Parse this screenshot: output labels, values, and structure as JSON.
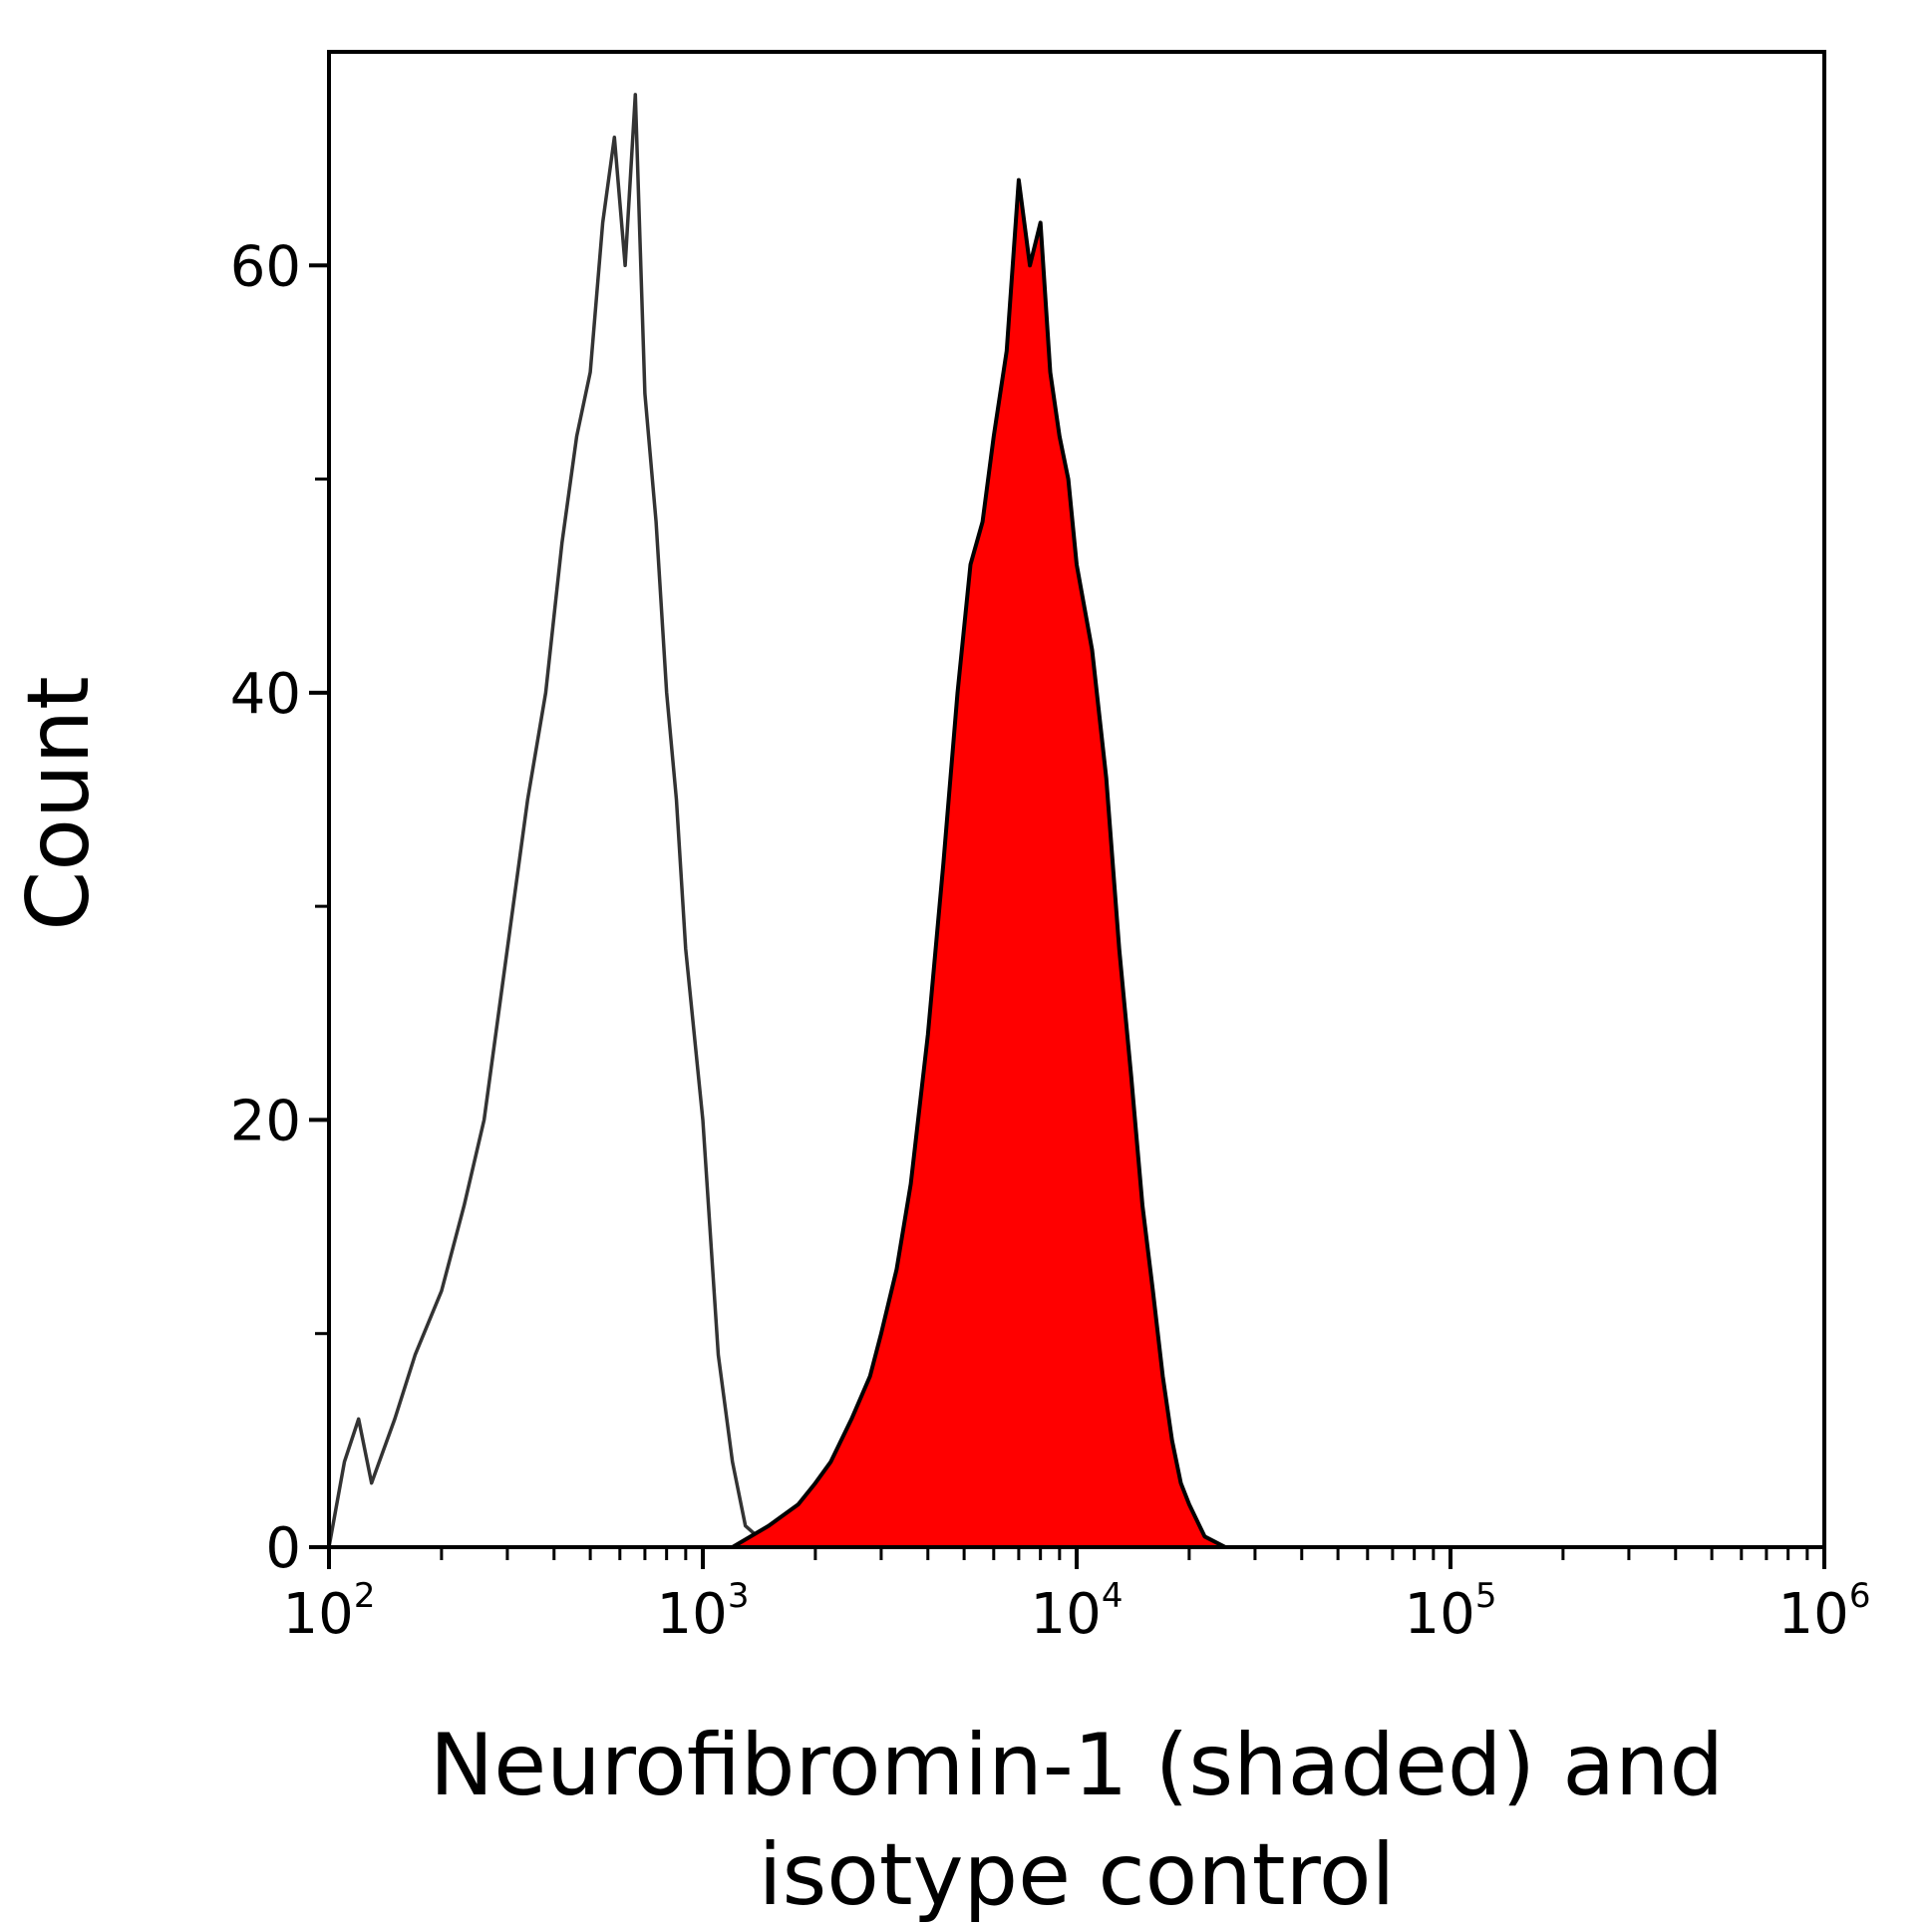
{
  "chart_data": {
    "type": "area",
    "xlabel_lines": [
      "Neurofibromin-1 (shaded) and",
      "isotype control"
    ],
    "ylabel": "Count",
    "x_scale": "log",
    "xlim": [
      100,
      1000000
    ],
    "ylim": [
      0,
      70
    ],
    "y_ticks": [
      0,
      20,
      40,
      60
    ],
    "x_ticks": [
      {
        "base": "10",
        "exp": "2",
        "value": 100
      },
      {
        "base": "10",
        "exp": "3",
        "value": 1000
      },
      {
        "base": "10",
        "exp": "4",
        "value": 10000
      },
      {
        "base": "10",
        "exp": "5",
        "value": 100000
      },
      {
        "base": "10",
        "exp": "6",
        "value": 1000000
      }
    ],
    "grid": false,
    "legend": "none",
    "series": [
      {
        "role": "isotype control",
        "style": "outline",
        "color": "#333333",
        "x": [
          100,
          110,
          120,
          130,
          150,
          170,
          200,
          230,
          260,
          300,
          340,
          380,
          420,
          460,
          500,
          540,
          580,
          620,
          660,
          700,
          750,
          800,
          850,
          900,
          1000,
          1100,
          1200,
          1300,
          1400,
          1500,
          1600
        ],
        "y": [
          0,
          4,
          6,
          3,
          6,
          9,
          12,
          16,
          20,
          28,
          35,
          40,
          47,
          52,
          55,
          62,
          66,
          60,
          68,
          54,
          48,
          40,
          35,
          28,
          20,
          9,
          4,
          1,
          0.5,
          0.2,
          0
        ]
      },
      {
        "role": "Neurofibromin-1",
        "style": "filled",
        "color": "#ff0000",
        "outline": "#000000",
        "x": [
          1200,
          1500,
          1800,
          2000,
          2200,
          2500,
          2800,
          3000,
          3300,
          3600,
          4000,
          4400,
          4800,
          5200,
          5600,
          6000,
          6500,
          7000,
          7500,
          8000,
          8500,
          9000,
          9500,
          10000,
          11000,
          12000,
          13000,
          14000,
          15000,
          16000,
          17000,
          18000,
          19000,
          20000,
          22000,
          25000
        ],
        "y": [
          0,
          1,
          2,
          3,
          4,
          6,
          8,
          10,
          13,
          17,
          24,
          32,
          40,
          46,
          48,
          52,
          56,
          64,
          60,
          62,
          55,
          52,
          50,
          46,
          42,
          36,
          28,
          22,
          16,
          12,
          8,
          5,
          3,
          2,
          0.5,
          0
        ]
      }
    ]
  }
}
